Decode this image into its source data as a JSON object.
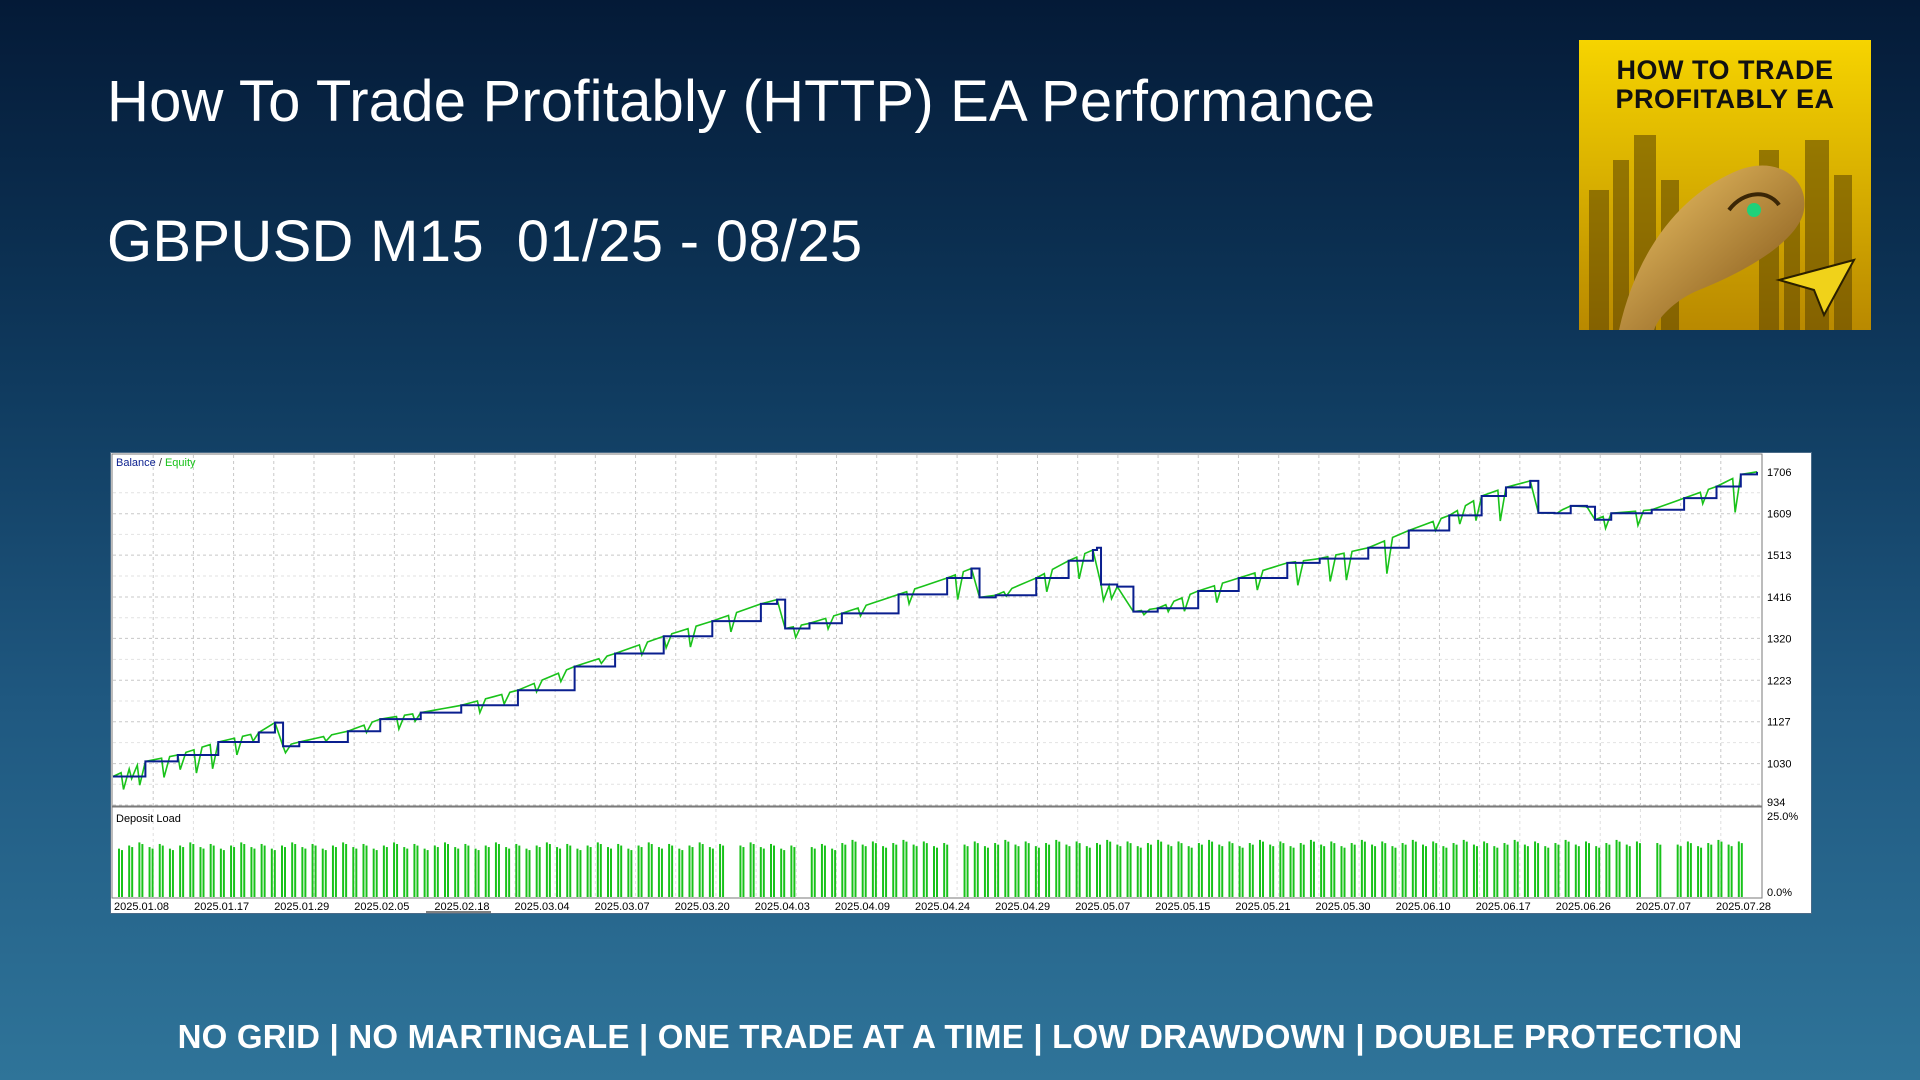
{
  "page": {
    "title": "How To Trade Profitably (HTTP) EA Performance",
    "subtitle": "GBPUSD M15  01/25 - 08/25",
    "footer": "NO GRID | NO MARTINGALE | ONE TRADE AT A TIME | LOW DRAWDOWN | DOUBLE PROTECTION"
  },
  "thumbnail": {
    "line1": "HOW TO TRADE",
    "line2": "PROFITABLY EA",
    "icon": "telegram-icon",
    "bg_color": "#e8b800"
  },
  "colors": {
    "balance": "#0a1f8f",
    "equity": "#19c21a",
    "deposit_load": "#19c21a",
    "grid": "#c8c8c8",
    "axis_text": "#000000"
  },
  "chart_data": [
    {
      "type": "line",
      "legend": {
        "balance_label": "Balance",
        "separator": "/",
        "equity_label": "Equity",
        "placement": "top-left"
      },
      "y_ticks": [
        "1706",
        "1609",
        "1513",
        "1416",
        "1320",
        "1223",
        "1127",
        "1030",
        "934"
      ],
      "ylim": [
        934,
        1745
      ],
      "grid": true,
      "series": [
        {
          "name": "Balance",
          "x": [
            "2025.01.08",
            "2025.01.17",
            "2025.01.29",
            "2025.02.05",
            "2025.02.18",
            "2025.03.04",
            "2025.03.07",
            "2025.03.20",
            "2025.04.03",
            "2025.04.09",
            "2025.04.24",
            "2025.04.29",
            "2025.05.07",
            "2025.05.15",
            "2025.05.21",
            "2025.05.30",
            "2025.06.10",
            "2025.06.17",
            "2025.06.26",
            "2025.07.07",
            "2025.07.28"
          ],
          "values": [
            1000,
            1060,
            1120,
            1125,
            1165,
            1205,
            1270,
            1330,
            1400,
            1375,
            1425,
            1475,
            1410,
            1525,
            1450,
            1498,
            1540,
            1610,
            1690,
            1620,
            1706
          ]
        },
        {
          "name": "Equity",
          "min_values": [
            970,
            1025,
            1055,
            1100,
            1120,
            1185,
            1225,
            1300,
            1340,
            1325,
            1375,
            1405,
            1380,
            1390,
            1420,
            1440,
            1480,
            1550,
            1610,
            1580,
            1660
          ]
        }
      ],
      "balance_points": [
        [
          0,
          1000
        ],
        [
          4,
          1035
        ],
        [
          8,
          1050
        ],
        [
          13,
          1080
        ],
        [
          18,
          1102
        ],
        [
          20,
          1125
        ],
        [
          21,
          1070
        ],
        [
          23,
          1080
        ],
        [
          29,
          1105
        ],
        [
          33,
          1133
        ],
        [
          38,
          1148
        ],
        [
          43,
          1165
        ],
        [
          50,
          1200
        ],
        [
          57,
          1255
        ],
        [
          62,
          1285
        ],
        [
          68,
          1325
        ],
        [
          74,
          1360
        ],
        [
          80,
          1400
        ],
        [
          82,
          1410
        ],
        [
          83,
          1343
        ],
        [
          86,
          1355
        ],
        [
          90,
          1378
        ],
        [
          97,
          1422
        ],
        [
          103,
          1460
        ],
        [
          106,
          1482
        ],
        [
          107,
          1415
        ],
        [
          109,
          1420
        ],
        [
          114,
          1460
        ],
        [
          118,
          1500
        ],
        [
          121,
          1525
        ],
        [
          121.5,
          1530
        ],
        [
          122,
          1445
        ],
        [
          124,
          1440
        ],
        [
          126,
          1382
        ],
        [
          129,
          1390
        ],
        [
          134,
          1430
        ],
        [
          139,
          1460
        ],
        [
          145,
          1495
        ],
        [
          149,
          1505
        ],
        [
          155,
          1530
        ],
        [
          160,
          1570
        ],
        [
          165,
          1605
        ],
        [
          169,
          1650
        ],
        [
          172,
          1670
        ],
        [
          175,
          1685
        ],
        [
          176,
          1611
        ],
        [
          178,
          1610
        ],
        [
          180,
          1627
        ],
        [
          182,
          1625
        ],
        [
          183,
          1595
        ],
        [
          185,
          1610
        ],
        [
          190,
          1618
        ],
        [
          194,
          1645
        ],
        [
          198,
          1672
        ],
        [
          201,
          1700
        ],
        [
          203,
          1706
        ]
      ],
      "equity_dips": [
        [
          1,
          970
        ],
        [
          2,
          995
        ],
        [
          3,
          980
        ],
        [
          6,
          998
        ],
        [
          8,
          1016
        ],
        [
          10,
          1008
        ],
        [
          12,
          1018
        ],
        [
          15,
          1050
        ],
        [
          17,
          1082
        ],
        [
          21,
          1055
        ],
        [
          26,
          1082
        ],
        [
          31,
          1102
        ],
        [
          35,
          1110
        ],
        [
          37,
          1128
        ],
        [
          45,
          1148
        ],
        [
          48,
          1168
        ],
        [
          52,
          1196
        ],
        [
          55,
          1220
        ],
        [
          60,
          1262
        ],
        [
          65,
          1282
        ],
        [
          68,
          1298
        ],
        [
          71,
          1300
        ],
        [
          76,
          1335
        ],
        [
          84,
          1322
        ],
        [
          88,
          1342
        ],
        [
          92,
          1372
        ],
        [
          98,
          1400
        ],
        [
          104,
          1410
        ],
        [
          110,
          1418
        ],
        [
          115,
          1428
        ],
        [
          119,
          1458
        ],
        [
          122,
          1408
        ],
        [
          123,
          1412
        ],
        [
          127,
          1375
        ],
        [
          130,
          1382
        ],
        [
          132,
          1383
        ],
        [
          136,
          1403
        ],
        [
          141,
          1432
        ],
        [
          146,
          1443
        ],
        [
          150,
          1452
        ],
        [
          152,
          1455
        ],
        [
          157,
          1470
        ],
        [
          163,
          1570
        ],
        [
          166,
          1585
        ],
        [
          168,
          1593
        ],
        [
          171,
          1592
        ],
        [
          178,
          1610
        ],
        [
          184,
          1575
        ],
        [
          188,
          1582
        ],
        [
          196,
          1632
        ],
        [
          200,
          1612
        ]
      ],
      "total_steps": 203
    },
    {
      "type": "bar",
      "label": "Deposit Load",
      "y_ticks": [
        "25.0%",
        "0.0%"
      ],
      "ylim": [
        0,
        25
      ],
      "bar_count": 160,
      "typical_value": 16
    }
  ],
  "x_axis": {
    "tick_labels": [
      "2025.01.08",
      "2025.01.17",
      "2025.01.29",
      "2025.02.05",
      "2025.02.18",
      "2025.03.04",
      "2025.03.07",
      "2025.03.20",
      "2025.04.03",
      "2025.04.09",
      "2025.04.24",
      "2025.04.29",
      "2025.05.07",
      "2025.05.15",
      "2025.05.21",
      "2025.05.30",
      "2025.06.10",
      "2025.06.17",
      "2025.06.26",
      "2025.07.07",
      "2025.07.28"
    ]
  }
}
